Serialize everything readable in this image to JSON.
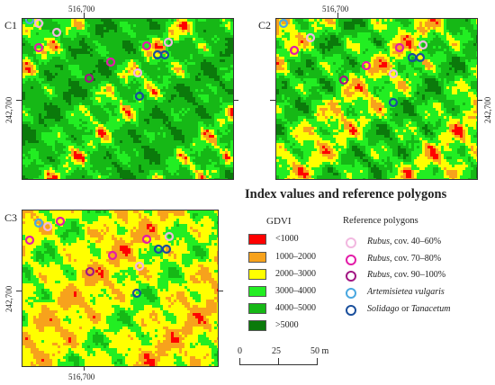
{
  "panels": [
    {
      "id": "C1",
      "label": "C1",
      "palette": "c1",
      "xcoord": "516,700",
      "ycoord": "242,700"
    },
    {
      "id": "C2",
      "label": "C2",
      "palette": "c2",
      "xcoord": "516,700",
      "ycoord": "242,700"
    },
    {
      "id": "C3",
      "label": "C3",
      "palette": "c3",
      "xcoord": "516,700",
      "ycoord": "242,700"
    }
  ],
  "legend": {
    "title": "Index values and reference polygons",
    "gdvi_title": "GDVI",
    "gdvi_classes": [
      {
        "label": "<1000",
        "color": "#ff0000"
      },
      {
        "label": "1000–2000",
        "color": "#f7a21c"
      },
      {
        "label": "2000–3000",
        "color": "#ffff00"
      },
      {
        "label": "3000–4000",
        "color": "#22ee22"
      },
      {
        "label": "4000–5000",
        "color": "#16b816"
      },
      {
        "label": ">5000",
        "color": "#0b7a0b"
      }
    ],
    "ref_title": "Reference polygons",
    "ref_items": [
      {
        "name": "Rubus",
        "suffix": ", cov. 40–60%",
        "color": "#f2b8e0"
      },
      {
        "name": "Rubus",
        "suffix": ", cov. 70–80%",
        "color": "#e31ca8"
      },
      {
        "name": "Rubus",
        "suffix": ", cov. 90–100%",
        "color": "#a21683"
      },
      {
        "name": "Artemisietea vulgaris",
        "suffix": "",
        "color": "#4aa8e0"
      },
      {
        "name": "Solidago",
        "suffix": " or ",
        "name2": "Tanacetum",
        "color": "#1a4f9c"
      }
    ]
  },
  "scale_bar": {
    "labels": [
      "0",
      "25",
      "50 m"
    ]
  }
}
